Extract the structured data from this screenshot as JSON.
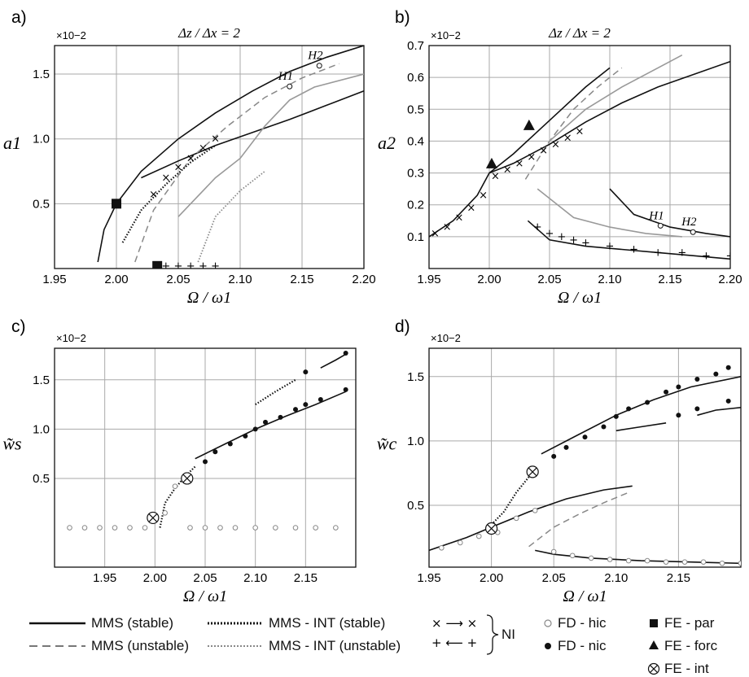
{
  "panels": [
    {
      "id": "a",
      "letter": "a)",
      "title": "Δz / Δx = 2",
      "ylabel": "a1",
      "xlabel": "Ω / ω1",
      "exponent": "×10−2",
      "xlim": [
        1.95,
        2.2
      ],
      "ylim": [
        0,
        1.72
      ],
      "xticks": [
        "1.95",
        "2.00",
        "2.05",
        "2.10",
        "2.15",
        "2.20"
      ],
      "yticks": [
        "0.5",
        "1.0",
        "1.5"
      ],
      "annotations": [
        {
          "text": "H1",
          "x": 2.136,
          "y": 1.48
        },
        {
          "text": "H2",
          "x": 2.16,
          "y": 1.64
        }
      ]
    },
    {
      "id": "b",
      "letter": "b)",
      "title": "Δz / Δx = 2",
      "ylabel": "a2",
      "xlabel": "Ω / ω1",
      "exponent": "×10−2",
      "xlim": [
        1.95,
        2.2
      ],
      "ylim": [
        0,
        0.7
      ],
      "xticks": [
        "1.95",
        "2.00",
        "2.05",
        "2.10",
        "2.15",
        "2.20"
      ],
      "yticks": [
        "0.1",
        "0.2",
        "0.3",
        "0.4",
        "0.5",
        "0.6",
        "0.7"
      ],
      "annotations": [
        {
          "text": "H1",
          "x": 2.138,
          "y": 0.165
        },
        {
          "text": "H2",
          "x": 2.165,
          "y": 0.145
        }
      ]
    },
    {
      "id": "c",
      "letter": "c)",
      "title": "",
      "ylabel": "w̃s",
      "xlabel": "Ω / ω1",
      "exponent": "×10−2",
      "xlim": [
        1.9,
        2.2
      ],
      "ylim": [
        -0.4,
        1.82
      ],
      "xticks": [
        "1.95",
        "2.00",
        "2.05",
        "2.10",
        "2.15"
      ],
      "yticks": [
        "0.5",
        "1.0",
        "1.5"
      ],
      "annotations": []
    },
    {
      "id": "d",
      "letter": "d)",
      "title": "",
      "ylabel": "w̃c",
      "xlabel": "Ω / ω1",
      "exponent": "×10−2",
      "xlim": [
        1.95,
        2.2
      ],
      "ylim": [
        0.02,
        1.72
      ],
      "xticks": [
        "1.95",
        "2.00",
        "2.05",
        "2.10",
        "2.15"
      ],
      "yticks": [
        "0.5",
        "1.0",
        "1.5"
      ],
      "annotations": []
    }
  ],
  "chart_data": [
    {
      "type": "line",
      "panel": "a",
      "xlabel": "Ω / ω1",
      "ylabel": "a1",
      "xlim": [
        1.95,
        2.2
      ],
      "ylim": [
        0,
        1.72
      ],
      "grid": true,
      "series": [
        {
          "name": "MMS (stable)",
          "style": "solid",
          "x": [
            1.985,
            1.99,
            2.0,
            2.02,
            2.05,
            2.08,
            2.11,
            2.14,
            2.17,
            2.2
          ],
          "y": [
            0.05,
            0.3,
            0.5,
            0.75,
            1.0,
            1.2,
            1.37,
            1.52,
            1.63,
            1.72
          ]
        },
        {
          "name": "MMS (stable)",
          "style": "solid",
          "x": [
            2.02,
            2.05,
            2.08,
            2.11,
            2.14,
            2.17,
            2.2
          ],
          "y": [
            0.7,
            0.83,
            0.95,
            1.05,
            1.15,
            1.26,
            1.37
          ]
        },
        {
          "name": "MMS (unstable)",
          "style": "dashed",
          "x": [
            2.015,
            2.03,
            2.06,
            2.09,
            2.12,
            2.15,
            2.18
          ],
          "y": [
            0.05,
            0.45,
            0.85,
            1.1,
            1.32,
            1.47,
            1.58
          ]
        },
        {
          "name": "MMS - INT (stable)",
          "style": "dotted",
          "x": [
            2.005,
            2.02,
            2.04,
            2.06,
            2.08
          ],
          "y": [
            0.2,
            0.45,
            0.65,
            0.82,
            0.95
          ]
        },
        {
          "name": "MMS - INT (unstable)",
          "style": "dotted-light",
          "x": [
            2.066,
            2.08,
            2.1,
            2.12
          ],
          "y": [
            0.05,
            0.4,
            0.6,
            0.75
          ]
        },
        {
          "name": "gray branch",
          "style": "gray",
          "x": [
            2.05,
            2.08,
            2.1,
            2.12,
            2.14,
            2.16,
            2.2
          ],
          "y": [
            0.4,
            0.7,
            0.85,
            1.1,
            1.3,
            1.4,
            1.5
          ]
        }
      ],
      "markers": [
        {
          "kind": "FE - par",
          "x": [
            2.0,
            2.033
          ],
          "y": [
            0.5,
            0.02
          ]
        },
        {
          "kind": "NI ×",
          "x": [
            2.03,
            2.04,
            2.05,
            2.06,
            2.07,
            2.08
          ],
          "y": [
            0.57,
            0.7,
            0.78,
            0.85,
            0.93,
            1.0
          ]
        },
        {
          "kind": "NI +",
          "x": [
            2.04,
            2.05,
            2.06,
            2.07,
            2.08
          ],
          "y": [
            0.02,
            0.02,
            0.02,
            0.02,
            0.02
          ]
        }
      ],
      "annotations": [
        {
          "text": "H1",
          "x": 2.136,
          "y": 1.48
        },
        {
          "text": "H2",
          "x": 2.16,
          "y": 1.64
        }
      ]
    },
    {
      "type": "line",
      "panel": "b",
      "xlabel": "Ω / ω1",
      "ylabel": "a2",
      "xlim": [
        1.95,
        2.2
      ],
      "ylim": [
        0,
        0.7
      ],
      "grid": true,
      "series": [
        {
          "name": "MMS (stable)",
          "style": "solid",
          "x": [
            1.95,
            1.97,
            1.99,
            2.0,
            2.02,
            2.05,
            2.08,
            2.11,
            2.14,
            2.17,
            2.2
          ],
          "y": [
            0.1,
            0.15,
            0.23,
            0.3,
            0.33,
            0.39,
            0.46,
            0.52,
            0.57,
            0.61,
            0.65
          ]
        },
        {
          "name": "MMS (stable)",
          "style": "solid",
          "x": [
            2.0,
            2.02,
            2.04,
            2.06,
            2.08,
            2.1
          ],
          "y": [
            0.3,
            0.36,
            0.43,
            0.5,
            0.57,
            0.63
          ]
        },
        {
          "name": "MMS (stable)",
          "style": "solid",
          "x": [
            2.032,
            2.05,
            2.08,
            2.11,
            2.14,
            2.17,
            2.2
          ],
          "y": [
            0.15,
            0.09,
            0.07,
            0.06,
            0.05,
            0.04,
            0.03
          ]
        },
        {
          "name": "MMS (stable)",
          "style": "solid",
          "x": [
            2.1,
            2.12,
            2.15,
            2.18,
            2.2
          ],
          "y": [
            0.25,
            0.17,
            0.13,
            0.11,
            0.1
          ]
        },
        {
          "name": "MMS (unstable)",
          "style": "dashed",
          "x": [
            2.03,
            2.05,
            2.07,
            2.09,
            2.11
          ],
          "y": [
            0.28,
            0.4,
            0.5,
            0.57,
            0.63
          ]
        },
        {
          "name": "gray branch",
          "style": "gray",
          "x": [
            2.04,
            2.07,
            2.1,
            2.13,
            2.16
          ],
          "y": [
            0.25,
            0.16,
            0.13,
            0.11,
            0.1
          ]
        },
        {
          "name": "gray branch",
          "style": "gray",
          "x": [
            2.05,
            2.08,
            2.11,
            2.14,
            2.16
          ],
          "y": [
            0.4,
            0.5,
            0.57,
            0.63,
            0.67
          ]
        }
      ],
      "markers": [
        {
          "kind": "FE - forc",
          "x": [
            2.002,
            2.033
          ],
          "y": [
            0.33,
            0.45
          ]
        },
        {
          "kind": "NI ×",
          "x": [
            1.955,
            1.965,
            1.975,
            1.985,
            1.995,
            2.005,
            2.015,
            2.025,
            2.035,
            2.045,
            2.055,
            2.065,
            2.075
          ],
          "y": [
            0.11,
            0.13,
            0.16,
            0.19,
            0.23,
            0.29,
            0.31,
            0.33,
            0.35,
            0.37,
            0.39,
            0.41,
            0.43
          ]
        },
        {
          "kind": "NI +",
          "x": [
            2.04,
            2.05,
            2.06,
            2.07,
            2.08,
            2.1,
            2.12,
            2.14,
            2.16,
            2.18,
            2.2
          ],
          "y": [
            0.13,
            0.11,
            0.1,
            0.09,
            0.08,
            0.07,
            0.06,
            0.05,
            0.05,
            0.04,
            0.04
          ]
        }
      ],
      "annotations": [
        {
          "text": "H1",
          "x": 2.138,
          "y": 0.165
        },
        {
          "text": "H2",
          "x": 2.165,
          "y": 0.145
        }
      ]
    },
    {
      "type": "line",
      "panel": "c",
      "xlabel": "Ω / ω1",
      "ylabel": "w̃s",
      "xlim": [
        1.9,
        2.2
      ],
      "ylim": [
        -0.4,
        1.82
      ],
      "grid": true,
      "series": [
        {
          "name": "MMS (stable)",
          "style": "solid",
          "x": [
            2.04,
            2.07,
            2.1,
            2.13,
            2.16,
            2.19
          ],
          "y": [
            0.7,
            0.85,
            1.0,
            1.13,
            1.25,
            1.38
          ]
        },
        {
          "name": "MMS (stable)",
          "style": "solid",
          "x": [
            2.165,
            2.18,
            2.19
          ],
          "y": [
            1.62,
            1.7,
            1.76
          ]
        },
        {
          "name": "MMS - INT (stable)",
          "style": "dotted",
          "x": [
            2.005,
            2.01,
            2.02,
            2.03,
            2.04
          ],
          "y": [
            0.0,
            0.25,
            0.4,
            0.52,
            0.62
          ]
        },
        {
          "name": "MMS - INT (stable)",
          "style": "dotted",
          "x": [
            2.1,
            2.12,
            2.14
          ],
          "y": [
            1.25,
            1.38,
            1.5
          ]
        }
      ],
      "markers": [
        {
          "kind": "FD - nic",
          "x": [
            2.05,
            2.06,
            2.075,
            2.09,
            2.1,
            2.11,
            2.125,
            2.14,
            2.15,
            2.165,
            2.19
          ],
          "y": [
            0.67,
            0.77,
            0.85,
            0.93,
            1.0,
            1.07,
            1.12,
            1.2,
            1.25,
            1.3,
            1.4
          ]
        },
        {
          "kind": "FD - nic",
          "x": [
            2.15,
            2.19
          ],
          "y": [
            1.58,
            1.77
          ]
        },
        {
          "kind": "FD - hic",
          "x": [
            1.915,
            1.93,
            1.945,
            1.96,
            1.975,
            1.99,
            2.0,
            2.01,
            2.02,
            2.035,
            2.05,
            2.065,
            2.08,
            2.1,
            2.12,
            2.14,
            2.16,
            2.18
          ],
          "y": [
            0,
            0,
            0,
            0,
            0,
            0,
            0.1,
            0.15,
            0.42,
            0,
            0,
            0,
            0,
            0,
            0,
            0,
            0,
            0
          ]
        },
        {
          "kind": "FE - int",
          "x": [
            1.998,
            2.032
          ],
          "y": [
            0.1,
            0.5
          ]
        }
      ]
    },
    {
      "type": "line",
      "panel": "d",
      "xlabel": "Ω / ω1",
      "ylabel": "w̃c",
      "xlim": [
        1.95,
        2.2
      ],
      "ylim": [
        0.02,
        1.72
      ],
      "grid": true,
      "series": [
        {
          "name": "MMS (stable)",
          "style": "solid",
          "x": [
            1.95,
            1.98,
            2.0,
            2.03,
            2.06,
            2.09,
            2.113
          ],
          "y": [
            0.15,
            0.25,
            0.33,
            0.45,
            0.55,
            0.62,
            0.65
          ]
        },
        {
          "name": "MMS (stable)",
          "style": "solid",
          "x": [
            2.04,
            2.07,
            2.1,
            2.13,
            2.16,
            2.2
          ],
          "y": [
            0.9,
            1.05,
            1.2,
            1.32,
            1.42,
            1.5
          ]
        },
        {
          "name": "MMS (stable)",
          "style": "solid",
          "x": [
            2.035,
            2.05,
            2.08,
            2.12,
            2.16,
            2.2
          ],
          "y": [
            0.15,
            0.12,
            0.09,
            0.07,
            0.06,
            0.05
          ]
        },
        {
          "name": "MMS (stable)",
          "style": "solid",
          "x": [
            2.1,
            2.12,
            2.14
          ],
          "y": [
            1.08,
            1.11,
            1.14
          ]
        },
        {
          "name": "MMS (stable)",
          "style": "solid",
          "x": [
            2.165,
            2.18,
            2.2
          ],
          "y": [
            1.2,
            1.24,
            1.26
          ]
        },
        {
          "name": "MMS (unstable)",
          "style": "dashed",
          "x": [
            2.03,
            2.05,
            2.07,
            2.09,
            2.11
          ],
          "y": [
            0.18,
            0.33,
            0.43,
            0.52,
            0.6
          ]
        },
        {
          "name": "MMS - INT (stable)",
          "style": "dotted",
          "x": [
            2.0,
            2.01,
            2.02,
            2.03
          ],
          "y": [
            0.35,
            0.45,
            0.6,
            0.72
          ]
        }
      ],
      "markers": [
        {
          "kind": "FD - nic",
          "x": [
            2.05,
            2.06,
            2.075,
            2.09,
            2.1,
            2.11,
            2.125,
            2.14,
            2.15,
            2.165,
            2.18,
            2.19
          ],
          "y": [
            0.88,
            0.95,
            1.03,
            1.11,
            1.19,
            1.25,
            1.3,
            1.38,
            1.42,
            1.48,
            1.52,
            1.57
          ]
        },
        {
          "kind": "FD - nic",
          "x": [
            2.15,
            2.165,
            2.19
          ],
          "y": [
            1.2,
            1.25,
            1.31
          ]
        },
        {
          "kind": "FD - hic",
          "x": [
            1.96,
            1.975,
            1.99,
            2.005,
            2.02,
            2.035,
            2.05,
            2.065,
            2.08,
            2.095,
            2.11,
            2.125,
            2.14,
            2.155,
            2.17,
            2.185,
            2.2
          ],
          "y": [
            0.17,
            0.21,
            0.26,
            0.29,
            0.4,
            0.46,
            0.14,
            0.11,
            0.09,
            0.08,
            0.07,
            0.07,
            0.06,
            0.06,
            0.06,
            0.05,
            0.05
          ]
        },
        {
          "kind": "FE - int",
          "x": [
            2.0,
            2.033
          ],
          "y": [
            0.32,
            0.76
          ]
        }
      ]
    }
  ],
  "legend": {
    "items": [
      {
        "label": "MMS (stable)",
        "style": "solid"
      },
      {
        "label": "MMS (unstable)",
        "style": "dashed"
      },
      {
        "label": "MMS - INT (stable)",
        "style": "dotted"
      },
      {
        "label": "MMS - INT (unstable)",
        "style": "dotted-light"
      },
      {
        "label": "NI",
        "style": "brace"
      },
      {
        "label": "FD - hic",
        "style": "open-circle"
      },
      {
        "label": "FD - nic",
        "style": "filled-circle"
      },
      {
        "label": "FE - par",
        "style": "square"
      },
      {
        "label": "FE - forc",
        "style": "triangle"
      },
      {
        "label": "FE - int",
        "style": "circle-x"
      }
    ]
  }
}
